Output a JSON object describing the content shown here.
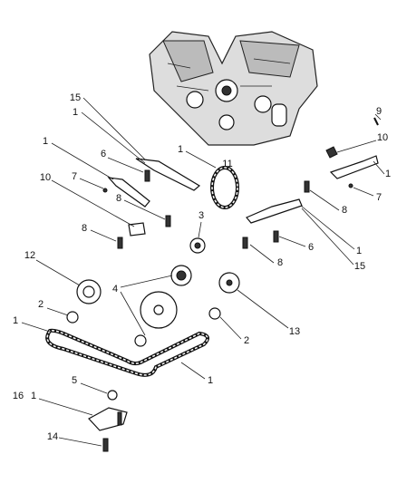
{
  "callouts": [
    "15",
    "1",
    "9",
    "1",
    "11",
    "10",
    "1",
    "1",
    "6",
    "7",
    "7",
    "8",
    "10",
    "8",
    "3",
    "8",
    "6",
    "1",
    "8",
    "15",
    "12",
    "4",
    "2",
    "13",
    "1",
    "2",
    "1",
    "5",
    "16",
    "1",
    "14"
  ]
}
